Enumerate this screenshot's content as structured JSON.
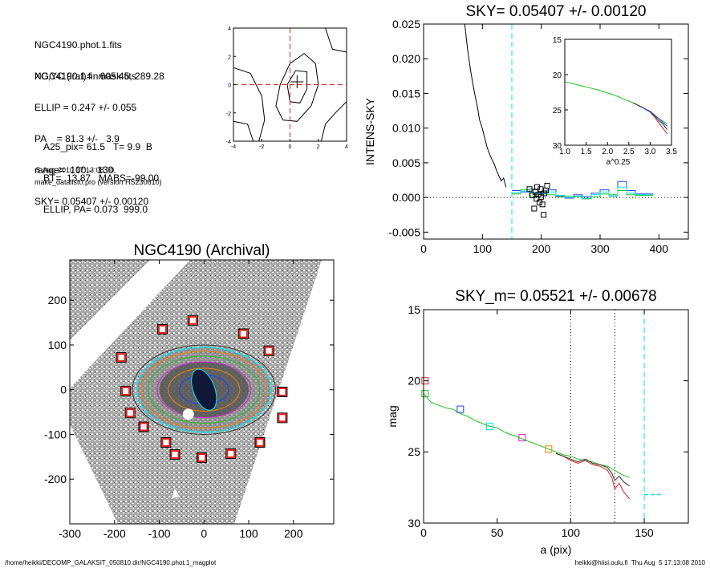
{
  "header_info": {
    "lines_a": [
      "NGC4190.phot.1.fits",
      "NGC4190.1.finmask.fits"
    ],
    "lines_b": [
      "XC,YC (iraf)=   605.45, 289.28",
      "ELLIP = 0.247 +/- 0.055",
      "PA    = 81.3 +/-   3.9",
      "range=  100.-  130.",
      "SKY= 0.05407 +/- 0.00120"
    ],
    "lines_c": [
      "A25_pix= 61.5   T= 9.9  B",
      "BT=  13.87   MABS=-99.00",
      "ELLIP, PA= 0.073  999.0"
    ],
    "date": "5-Aug-2010 17:13:08.00",
    "program": "make_datalist0.pro (version HS230610)"
  },
  "footer": {
    "left": "/home/heikki/DECOMP_GALAKSIT_050810.dir/NGC4190.phot.1_magplot",
    "right": "heikki@hiisi.oulu.fi  Thu Aug  5 17:13:08 2010"
  },
  "colors": {
    "cyan": "#00e5ee",
    "red": "#e02020",
    "blue": "#2040ff",
    "green": "#20c020",
    "magenta": "#d020d0",
    "orange": "#f08000",
    "dark": "#303030"
  },
  "chart_data": [
    {
      "id": "contour",
      "type": "line",
      "xlim": [
        -4,
        4
      ],
      "ylim": [
        -4,
        4
      ],
      "x_ticks": [
        "-4",
        "-2",
        "0",
        "2",
        "4"
      ],
      "y_ticks": [
        "-4",
        "-2",
        "0",
        "2",
        "4"
      ],
      "center": [
        0.5,
        0.2
      ],
      "contours": [
        [
          [
            -0.5,
            -2.5
          ],
          [
            -1,
            -1.5
          ],
          [
            -0.7,
            0
          ],
          [
            0,
            1.5
          ],
          [
            1,
            2.2
          ],
          [
            1.8,
            1.5
          ],
          [
            2,
            0
          ],
          [
            1.5,
            -1.5
          ],
          [
            0.5,
            -2.6
          ],
          [
            -0.5,
            -2.5
          ]
        ],
        [
          [
            0,
            -1.2
          ],
          [
            -0.2,
            0
          ],
          [
            0.4,
            1
          ],
          [
            1.2,
            0.9
          ],
          [
            1.2,
            -0.3
          ],
          [
            0.7,
            -1.3
          ],
          [
            0,
            -1.2
          ]
        ],
        [
          [
            -4,
            1.2
          ],
          [
            -2.8,
            0.8
          ],
          [
            -2,
            -0.8
          ],
          [
            -1.8,
            -2.5
          ],
          [
            -2.2,
            -4
          ]
        ],
        [
          [
            -4,
            -2.6
          ],
          [
            -3,
            -2.8
          ],
          [
            -2.6,
            -4
          ]
        ],
        [
          [
            2.5,
            4
          ],
          [
            3,
            2.5
          ],
          [
            4,
            2.3
          ]
        ],
        [
          [
            4,
            -1.2
          ],
          [
            3.2,
            -2
          ],
          [
            2.5,
            -2.8
          ],
          [
            2.2,
            -4
          ]
        ]
      ]
    },
    {
      "id": "sky",
      "type": "line",
      "title": "SKY= 0.05407 +/- 0.00120",
      "xlabel": "",
      "ylabel": "INTENS-SKY",
      "xlim": [
        0,
        450
      ],
      "ylim": [
        -0.006,
        0.025
      ],
      "x_ticks": [
        "0",
        "100",
        "200",
        "300",
        "400"
      ],
      "y_ticks": [
        "-0.005",
        "0.000",
        "0.005",
        "0.010",
        "0.015",
        "0.020",
        "0.025"
      ],
      "sky_level": 0,
      "vline_x": 150,
      "profile": {
        "x": [
          70,
          75,
          80,
          85,
          88,
          92,
          95,
          100,
          104,
          108,
          112,
          116,
          120,
          124,
          128,
          132,
          136,
          140
        ],
        "y": [
          0.025,
          0.0212,
          0.0182,
          0.0158,
          0.0145,
          0.0128,
          0.0112,
          0.0099,
          0.0085,
          0.0072,
          0.0063,
          0.0055,
          0.0048,
          0.0039,
          0.0031,
          0.0024,
          0.0028,
          0.0015
        ]
      },
      "series": [
        {
          "color": "blue",
          "x": [
            150,
            165,
            180,
            195,
            210,
            225,
            240,
            255,
            270,
            285,
            300,
            315,
            330,
            345,
            360,
            375
          ],
          "y": [
            0.001,
            0.0008,
            0.0012,
            0.0006,
            0.0011,
            0.0002,
            -0.0001,
            0.0004,
            0.0001,
            0.0006,
            0.0011,
            0.0002,
            0.0023,
            0.001,
            0.0005,
            0.0005
          ]
        },
        {
          "color": "green",
          "x": [
            150,
            165,
            180,
            195,
            210,
            225,
            240,
            255,
            270,
            285,
            300,
            315,
            330,
            345,
            360,
            375
          ],
          "y": [
            0.0005,
            0.0011,
            0.0002,
            0.0008,
            0.0004,
            0.0001,
            0.0002,
            0.0001,
            -0.0002,
            0.0001,
            0.0005,
            0.0004,
            0.001,
            0.0004,
            0.0003,
            0.0003
          ]
        },
        {
          "color": "cyan",
          "x": [
            150,
            165,
            180,
            195,
            210,
            225,
            240,
            255,
            270,
            285,
            300,
            315,
            330,
            345,
            360,
            375
          ],
          "y": [
            0.0007,
            0.0009,
            0.0007,
            0.0005,
            0.0008,
            0.0003,
            0.0,
            0.0002,
            -0.0001,
            0.0004,
            0.0008,
            0.0002,
            0.0015,
            0.0006,
            0.0004,
            0.0004
          ]
        }
      ],
      "markers": {
        "x": [
          180,
          185,
          188,
          190,
          192,
          193,
          195,
          197,
          199,
          200,
          202,
          204,
          205,
          208,
          210
        ],
        "y": [
          0.0012,
          0.0003,
          -0.0016,
          0.0008,
          -0.0002,
          0.0015,
          0.0004,
          -0.0007,
          0.0012,
          0.0001,
          -0.001,
          -0.0025,
          0.0006,
          0.001,
          0.0017
        ]
      },
      "inset": {
        "xlabel": "a^0.25",
        "xlim": [
          1.0,
          3.5
        ],
        "ylim": [
          30,
          15
        ],
        "x_ticks": [
          "1.0",
          "1.5",
          "2.0",
          "2.5",
          "3.0",
          "3.5"
        ],
        "y_ticks": [
          "15",
          "20",
          "25",
          "30"
        ],
        "series": [
          {
            "color": "green",
            "x": [
              1.0,
              1.2,
              1.4,
              1.6,
              1.8,
              2.0,
              2.2,
              2.4,
              2.6,
              2.8,
              3.0,
              3.1,
              3.2,
              3.3,
              3.4
            ],
            "y": [
              21.0,
              21.3,
              21.6,
              21.9,
              22.2,
              22.6,
              23.0,
              23.5,
              24.0,
              24.6,
              25.2,
              25.7,
              26.2,
              26.6,
              27.0
            ]
          },
          {
            "color": "red",
            "x": [
              2.6,
              2.8,
              3.0,
              3.1,
              3.2,
              3.3,
              3.4
            ],
            "y": [
              24.0,
              24.6,
              25.3,
              26.0,
              26.8,
              27.6,
              28.4
            ]
          },
          {
            "color": "dark",
            "x": [
              2.6,
              2.8,
              3.0,
              3.1,
              3.2,
              3.3,
              3.4
            ],
            "y": [
              24.0,
              24.6,
              25.3,
              25.8,
              26.5,
              27.0,
              27.8
            ]
          },
          {
            "color": "blue",
            "x": [
              2.8,
              3.0,
              3.1,
              3.2,
              3.3,
              3.4
            ],
            "y": [
              24.6,
              25.2,
              25.7,
              26.2,
              26.8,
              27.3
            ]
          }
        ]
      }
    },
    {
      "id": "image",
      "type": "scatter",
      "title": "NGC4190 (Archival)",
      "xlim": [
        -300,
        290
      ],
      "ylim": [
        -300,
        290
      ],
      "x_ticks": [
        "-300",
        "-200",
        "-100",
        "0",
        "100",
        "200"
      ],
      "y_ticks": [
        "-200",
        "-100",
        "0",
        "100",
        "200"
      ],
      "ellipses": [
        {
          "rx": 160,
          "ry": 100,
          "color": "dark"
        },
        {
          "rx": 150,
          "ry": 95,
          "color": "cyan"
        },
        {
          "rx": 140,
          "ry": 86,
          "color": "orange"
        },
        {
          "rx": 125,
          "ry": 75,
          "color": "green"
        },
        {
          "rx": 105,
          "ry": 62,
          "color": "magenta"
        },
        {
          "rx": 80,
          "ry": 48,
          "color": "orange"
        },
        {
          "rx": 55,
          "ry": 33,
          "color": "blue"
        }
      ],
      "core": {
        "rx": 24,
        "ry": 48
      },
      "boxes": [
        [
          -93,
          135
        ],
        [
          -25,
          155
        ],
        [
          88,
          125
        ],
        [
          145,
          87
        ],
        [
          -185,
          72
        ],
        [
          -175,
          -3
        ],
        [
          175,
          -5
        ],
        [
          -165,
          -52
        ],
        [
          175,
          -63
        ],
        [
          -135,
          -83
        ],
        [
          -85,
          -118
        ],
        [
          125,
          -118
        ],
        [
          -65,
          -145
        ],
        [
          60,
          -143
        ],
        [
          -5,
          -152
        ]
      ]
    },
    {
      "id": "mag",
      "type": "line",
      "title": "SKY_m=  0.05521 +/- 0.00678",
      "xlabel": "a (pix)",
      "ylabel": "mag",
      "xlim": [
        0,
        180
      ],
      "ylim": [
        30,
        15
      ],
      "x_ticks": [
        "0",
        "50",
        "100",
        "150"
      ],
      "y_ticks": [
        "15",
        "20",
        "25",
        "30"
      ],
      "vlines_dotted": [
        100,
        130
      ],
      "vline_dashed": 150,
      "sky_mark": {
        "x": [
          150,
          162
        ],
        "y": 28
      },
      "series": [
        {
          "color": "green",
          "x": [
            0,
            5,
            10,
            15,
            20,
            25,
            30,
            35,
            40,
            45,
            50,
            55,
            60,
            65,
            70,
            75,
            80,
            85,
            90,
            95,
            100,
            105,
            110,
            115,
            120,
            125,
            130,
            135,
            140
          ],
          "y": [
            20.9,
            21.5,
            21.7,
            21.9,
            22.0,
            22.3,
            22.5,
            22.8,
            23.0,
            23.2,
            23.3,
            23.6,
            23.8,
            24.0,
            24.2,
            24.4,
            24.6,
            24.8,
            25.0,
            25.2,
            25.3,
            25.5,
            25.6,
            25.7,
            25.9,
            26.0,
            26.3,
            26.6,
            26.8
          ]
        },
        {
          "color": "red",
          "x": [
            90,
            95,
            100,
            105,
            110,
            115,
            120,
            125,
            128,
            130,
            133,
            136,
            140
          ],
          "y": [
            25.1,
            25.3,
            25.6,
            25.8,
            25.6,
            25.9,
            26.0,
            26.3,
            26.8,
            27.6,
            27.2,
            27.8,
            28.3
          ]
        },
        {
          "color": "dark",
          "x": [
            90,
            95,
            100,
            105,
            110,
            115,
            120,
            125,
            128,
            130,
            133,
            136,
            140
          ],
          "y": [
            25.1,
            25.3,
            25.5,
            25.7,
            25.5,
            25.8,
            25.9,
            26.1,
            26.5,
            27.0,
            26.7,
            27.1,
            27.4
          ]
        }
      ],
      "markers": [
        {
          "x": 1,
          "y": 20.0,
          "color": "red"
        },
        {
          "x": 1,
          "y": 20.9,
          "color": "green"
        },
        {
          "x": 25,
          "y": 22.0,
          "color": "blue"
        },
        {
          "x": 45,
          "y": 23.2,
          "color": "cyan"
        },
        {
          "x": 67,
          "y": 24.0,
          "color": "magenta"
        },
        {
          "x": 85,
          "y": 24.8,
          "color": "orange"
        }
      ]
    }
  ]
}
